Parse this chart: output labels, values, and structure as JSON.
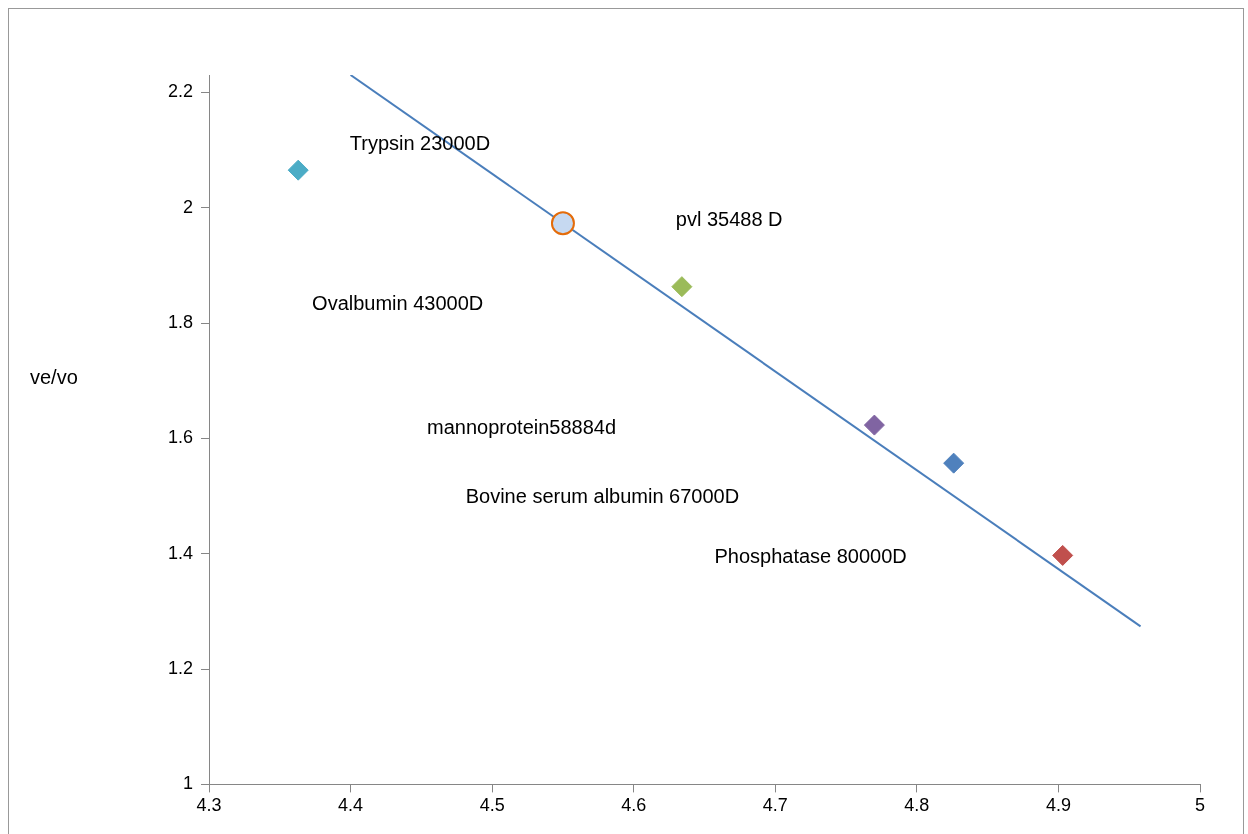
{
  "chart_data": {
    "type": "scatter",
    "ylabel": "ve/vo",
    "xlim": [
      4.3,
      5
    ],
    "xticks": [
      4.3,
      4.4,
      4.5,
      4.6,
      4.7,
      4.8,
      4.9,
      5
    ],
    "ylim": [
      1,
      2.23
    ],
    "yticks": [
      1,
      1.2,
      1.4,
      1.6,
      1.8,
      2,
      2.2
    ],
    "grid": false,
    "legend": false,
    "series": [
      {
        "marker": "diamond",
        "color": "#4bacc6",
        "x": [
          4.363
        ],
        "values": [
          2.065
        ]
      },
      {
        "marker": "circle",
        "color": "#c6d9f1",
        "x": [
          4.55
        ],
        "values": [
          1.973
        ]
      },
      {
        "marker": "diamond",
        "color": "#9bbb59",
        "x": [
          4.634
        ],
        "values": [
          1.863
        ]
      },
      {
        "marker": "diamond",
        "color": "#8064a2",
        "x": [
          4.77
        ],
        "values": [
          1.623
        ]
      },
      {
        "marker": "diamond",
        "color": "#4f81bd",
        "x": [
          4.826
        ],
        "values": [
          1.557
        ]
      },
      {
        "marker": "diamond",
        "color": "#c0504d",
        "x": [
          4.903
        ],
        "values": [
          1.397
        ]
      },
      {
        "type": "line",
        "marker": "none",
        "color": "#4a7ebb",
        "x": [
          4.4,
          4.958
        ],
        "values": [
          2.23,
          1.274
        ]
      }
    ],
    "annotations": [
      "Trypsin 23000D",
      "pvl 35488 D",
      "Ovalbumin 43000D",
      "mannoprotein58884d",
      "Bovine serum albumin 67000D",
      "Phosphatase 80000D"
    ]
  }
}
